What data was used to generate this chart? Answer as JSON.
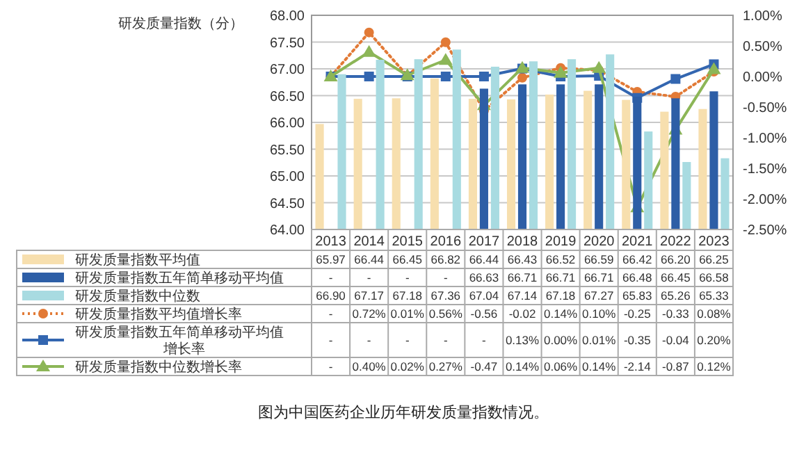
{
  "chart_data": {
    "type": "bar",
    "ylabel": "研发质量指数（分）",
    "categories": [
      "2013",
      "2014",
      "2015",
      "2016",
      "2017",
      "2018",
      "2019",
      "2020",
      "2021",
      "2022",
      "2023"
    ],
    "series": [
      {
        "name": "研发质量指数平均值",
        "color": "#f7dfae",
        "values": [
          65.97,
          66.44,
          66.45,
          66.82,
          66.44,
          66.43,
          66.52,
          66.59,
          66.42,
          66.2,
          66.25
        ],
        "value_labels": [
          "65.97",
          "66.44",
          "66.45",
          "66.82",
          "66.44",
          "66.43",
          "66.52",
          "66.59",
          "66.42",
          "66.20",
          "66.25"
        ]
      },
      {
        "name": "研发质量指数五年简单移动平均值",
        "color": "#2d5ea6",
        "values": [
          null,
          null,
          null,
          null,
          66.63,
          66.71,
          66.71,
          66.71,
          66.48,
          66.45,
          66.58
        ],
        "value_labels": [
          "-",
          "-",
          "-",
          "-",
          "66.63",
          "66.71",
          "66.71",
          "66.71",
          "66.48",
          "66.45",
          "66.58"
        ]
      },
      {
        "name": "研发质量指数中位数",
        "color": "#a8dbe1",
        "values": [
          66.9,
          67.17,
          67.18,
          67.36,
          67.04,
          67.14,
          67.18,
          67.27,
          65.83,
          65.26,
          65.33
        ],
        "value_labels": [
          "66.90",
          "67.17",
          "67.18",
          "67.36",
          "67.04",
          "67.14",
          "67.18",
          "67.27",
          "65.83",
          "65.26",
          "65.33"
        ]
      },
      {
        "name": "研发质量指数平均值增长率",
        "type": "line",
        "axis": "y2",
        "color": "#e27a36",
        "marker": "circle",
        "line_style": "dotted",
        "values": [
          0,
          0.72,
          0.01,
          0.56,
          -0.56,
          -0.02,
          0.14,
          0.1,
          -0.25,
          -0.33,
          0.08
        ],
        "value_labels": [
          "-",
          "0.72%",
          "0.01%",
          "0.56%",
          "-0.56",
          "-0.02",
          "0.14%",
          "0.10%",
          "-0.25",
          "-0.33",
          "0.08%"
        ]
      },
      {
        "name": "研发质量指数五年简单移动平均值增长率",
        "type": "line",
        "axis": "y2",
        "color": "#3366b0",
        "marker": "square",
        "line_style": "solid",
        "values": [
          0,
          0,
          0,
          0,
          0,
          0.13,
          0.0,
          0.01,
          -0.35,
          -0.04,
          0.2
        ],
        "value_labels": [
          "-",
          "-",
          "-",
          "-",
          "-",
          "0.13%",
          "0.00%",
          "0.01%",
          "-0.35",
          "-0.04",
          "0.20%"
        ]
      },
      {
        "name": "研发质量指数中位数增长率",
        "type": "line",
        "axis": "y2",
        "color": "#8cb657",
        "marker": "triangle",
        "line_style": "solid",
        "values": [
          0,
          0.4,
          0.02,
          0.27,
          -0.47,
          0.14,
          0.06,
          0.14,
          -2.14,
          -0.87,
          0.12
        ],
        "value_labels": [
          "-",
          "0.40%",
          "0.02%",
          "0.27%",
          "-0.47",
          "0.14%",
          "0.06%",
          "0.14%",
          "-2.14",
          "-0.87",
          "0.12%"
        ]
      }
    ],
    "ylim": [
      64,
      68
    ],
    "yticks": [
      {
        "value": 64,
        "label": "64.00"
      },
      {
        "value": 64.5,
        "label": "64.50"
      },
      {
        "value": 65,
        "label": "65.00"
      },
      {
        "value": 65.5,
        "label": "65.50"
      },
      {
        "value": 66,
        "label": "66.00"
      },
      {
        "value": 66.5,
        "label": "66.50"
      },
      {
        "value": 67,
        "label": "67.00"
      },
      {
        "value": 67.5,
        "label": "67.50"
      },
      {
        "value": 68,
        "label": "68.00"
      }
    ],
    "y2lim": [
      -2.5,
      1
    ],
    "y2ticks": [
      {
        "value": -2.5,
        "label": "-2.50%"
      },
      {
        "value": -2,
        "label": "-2.00%"
      },
      {
        "value": -1.5,
        "label": "-1.50%"
      },
      {
        "value": -1,
        "label": "-1.00%"
      },
      {
        "value": -0.5,
        "label": "-0.50%"
      },
      {
        "value": 0,
        "label": "0.00%"
      },
      {
        "value": 0.5,
        "label": "0.50%"
      },
      {
        "value": 1,
        "label": "1.00%"
      }
    ],
    "grid": "y",
    "legend": "bottom",
    "annotations": [
      "图为中国医药企业历年研发质量指数情况。"
    ]
  }
}
